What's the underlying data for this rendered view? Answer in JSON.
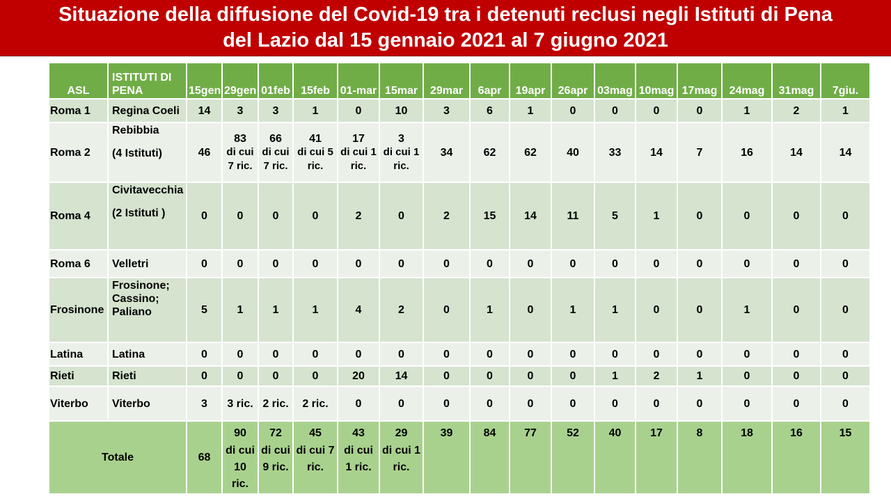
{
  "title": {
    "line1": "Situazione della diffusione del Covid-19 tra i detenuti reclusi negli Istituti di Pena",
    "line2": "del Lazio dal 15 gennaio 2021 al 7 giugno 2021"
  },
  "headers": {
    "asl": "ASL",
    "istituti_line1": "ISTITUTI DI",
    "istituti_line2": "PENA",
    "dates": [
      [
        "15",
        "gen"
      ],
      [
        "29",
        "gen"
      ],
      [
        "01",
        "feb"
      ],
      [
        "15",
        "feb"
      ],
      [
        "01-",
        "mar"
      ],
      [
        "15",
        "mar"
      ],
      [
        "29",
        "mar"
      ],
      [
        "6",
        "apr"
      ],
      [
        "19",
        "apr"
      ],
      [
        "26",
        "apr"
      ],
      [
        "03",
        "mag"
      ],
      [
        "10",
        "mag"
      ],
      [
        "17",
        "mag"
      ],
      [
        "24",
        "mag"
      ],
      [
        "31",
        "mag"
      ],
      [
        "7",
        "giu."
      ]
    ]
  },
  "rows": [
    {
      "asl": "Roma 1",
      "istituti": [
        "Regina Coeli"
      ],
      "values": [
        [
          "14"
        ],
        [
          "3"
        ],
        [
          "3"
        ],
        [
          "1"
        ],
        [
          "0"
        ],
        [
          "10"
        ],
        [
          "3"
        ],
        [
          "6"
        ],
        [
          "1"
        ],
        [
          "0"
        ],
        [
          "0"
        ],
        [
          "0"
        ],
        [
          "0"
        ],
        [
          "1"
        ],
        [
          "2"
        ],
        [
          "1"
        ]
      ]
    },
    {
      "asl": "Roma 2",
      "istituti": [
        "Rebibbia",
        "",
        "(4 Istituti)"
      ],
      "values": [
        [
          "46"
        ],
        [
          "83",
          "di cui 7 ric."
        ],
        [
          "66",
          "di cui 7 ric."
        ],
        [
          "41",
          "di cui 5 ric."
        ],
        [
          "17",
          "di cui 1 ric."
        ],
        [
          "3",
          "di cui 1 ric."
        ],
        [
          "34"
        ],
        [
          "62"
        ],
        [
          "62"
        ],
        [
          "40"
        ],
        [
          "33"
        ],
        [
          "14"
        ],
        [
          "7"
        ],
        [
          "16"
        ],
        [
          "14"
        ],
        [
          "14"
        ]
      ]
    },
    {
      "asl": "Roma 4",
      "istituti": [
        "Civitavecchia",
        "",
        "(2 Istituti )"
      ],
      "values": [
        [
          "0"
        ],
        [
          "0"
        ],
        [
          "0"
        ],
        [
          "0"
        ],
        [
          "2"
        ],
        [
          "0"
        ],
        [
          "2"
        ],
        [
          "15"
        ],
        [
          "14"
        ],
        [
          "11"
        ],
        [
          "5"
        ],
        [
          "1"
        ],
        [
          "0"
        ],
        [
          "0"
        ],
        [
          "0"
        ],
        [
          "0"
        ]
      ]
    },
    {
      "asl": "Roma 6",
      "istituti": [
        "Velletri"
      ],
      "values": [
        [
          "0"
        ],
        [
          "0"
        ],
        [
          "0"
        ],
        [
          "0"
        ],
        [
          "0"
        ],
        [
          "0"
        ],
        [
          "0"
        ],
        [
          "0"
        ],
        [
          "0"
        ],
        [
          "0"
        ],
        [
          "0"
        ],
        [
          "0"
        ],
        [
          "0"
        ],
        [
          "0"
        ],
        [
          "0"
        ],
        [
          "0"
        ]
      ]
    },
    {
      "asl": "Frosinone",
      "istituti": [
        "Frosinone;",
        "Cassino;",
        "Paliano"
      ],
      "values": [
        [
          "5"
        ],
        [
          "1"
        ],
        [
          "1"
        ],
        [
          "1"
        ],
        [
          "4"
        ],
        [
          "2"
        ],
        [
          "0"
        ],
        [
          "1"
        ],
        [
          "0"
        ],
        [
          "1"
        ],
        [
          "1"
        ],
        [
          "0"
        ],
        [
          "0"
        ],
        [
          "1"
        ],
        [
          "0"
        ],
        [
          "0"
        ]
      ]
    },
    {
      "asl": "Latina",
      "istituti": [
        "Latina"
      ],
      "values": [
        [
          "0"
        ],
        [
          "0"
        ],
        [
          "0"
        ],
        [
          "0"
        ],
        [
          "0"
        ],
        [
          "0"
        ],
        [
          "0"
        ],
        [
          "0"
        ],
        [
          "0"
        ],
        [
          "0"
        ],
        [
          "0"
        ],
        [
          "0"
        ],
        [
          "0"
        ],
        [
          "0"
        ],
        [
          "0"
        ],
        [
          "0"
        ]
      ]
    },
    {
      "asl": "Rieti",
      "istituti": [
        "Rieti"
      ],
      "values": [
        [
          "0"
        ],
        [
          "0"
        ],
        [
          "0"
        ],
        [
          "0"
        ],
        [
          "20"
        ],
        [
          "14"
        ],
        [
          "0"
        ],
        [
          "0"
        ],
        [
          "0"
        ],
        [
          "0"
        ],
        [
          "1"
        ],
        [
          "2"
        ],
        [
          "1"
        ],
        [
          "0"
        ],
        [
          "0"
        ],
        [
          "0"
        ]
      ]
    },
    {
      "asl": "Viterbo",
      "istituti": [
        "Viterbo"
      ],
      "values": [
        [
          "3"
        ],
        [
          "3 ric."
        ],
        [
          "2 ric."
        ],
        [
          "2 ric."
        ],
        [
          "0"
        ],
        [
          "0"
        ],
        [
          "0"
        ],
        [
          "0"
        ],
        [
          "0"
        ],
        [
          "0"
        ],
        [
          "0"
        ],
        [
          "0"
        ],
        [
          "0"
        ],
        [
          "0"
        ],
        [
          "0"
        ],
        [
          "0"
        ]
      ]
    }
  ],
  "total": {
    "label": "Totale",
    "values": [
      [
        "68"
      ],
      [
        "90",
        "di cui 10 ric."
      ],
      [
        "72",
        "di cui 9 ric."
      ],
      [
        "45",
        "di cui 7 ric."
      ],
      [
        "43",
        "di cui 1 ric."
      ],
      [
        "29",
        "di cui 1 ric."
      ],
      [
        "39"
      ],
      [
        "84"
      ],
      [
        "77"
      ],
      [
        "52"
      ],
      [
        "40"
      ],
      [
        "17"
      ],
      [
        "8"
      ],
      [
        "18"
      ],
      [
        "16"
      ],
      [
        "15"
      ]
    ]
  },
  "colors": {
    "title_bg": "#c00000",
    "header_bg": "#70ad47",
    "row_odd": "#d5e3cf",
    "row_even": "#ebf1e9",
    "total_bg": "#a9d18e"
  }
}
